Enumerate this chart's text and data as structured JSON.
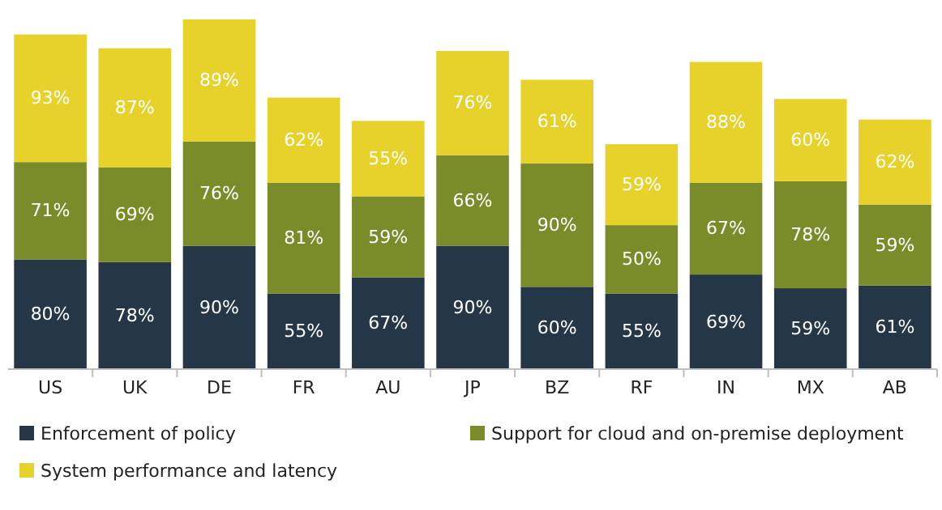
{
  "chart_data": {
    "type": "bar",
    "stacked": true,
    "legend": "bottom",
    "categories": [
      "US",
      "UK",
      "DE",
      "FR",
      "AU",
      "JP",
      "BZ",
      "RF",
      "IN",
      "MX",
      "AB"
    ],
    "series": [
      {
        "name": "Enforcement of policy",
        "color": "#253746",
        "values": [
          80,
          78,
          90,
          55,
          67,
          90,
          60,
          55,
          69,
          59,
          61
        ],
        "value_labels": [
          "80%",
          "78%",
          "90%",
          "55%",
          "67%",
          "90%",
          "60%",
          "55%",
          "69%",
          "59%",
          "61%"
        ]
      },
      {
        "name": "Support for cloud and on-premise deployment",
        "color": "#7a8c2a",
        "values": [
          71,
          69,
          76,
          81,
          59,
          66,
          90,
          50,
          67,
          78,
          59
        ],
        "value_labels": [
          "71%",
          "69%",
          "76%",
          "81%",
          "59%",
          "66%",
          "90%",
          "50%",
          "67%",
          "78%",
          "59%"
        ]
      },
      {
        "name": "System performance and latency",
        "color": "#e6d22a",
        "values": [
          93,
          87,
          89,
          62,
          55,
          76,
          61,
          59,
          88,
          60,
          62
        ],
        "value_labels": [
          "93%",
          "87%",
          "89%",
          "62%",
          "55%",
          "76%",
          "61%",
          "59%",
          "88%",
          "60%",
          "62%"
        ]
      }
    ]
  }
}
